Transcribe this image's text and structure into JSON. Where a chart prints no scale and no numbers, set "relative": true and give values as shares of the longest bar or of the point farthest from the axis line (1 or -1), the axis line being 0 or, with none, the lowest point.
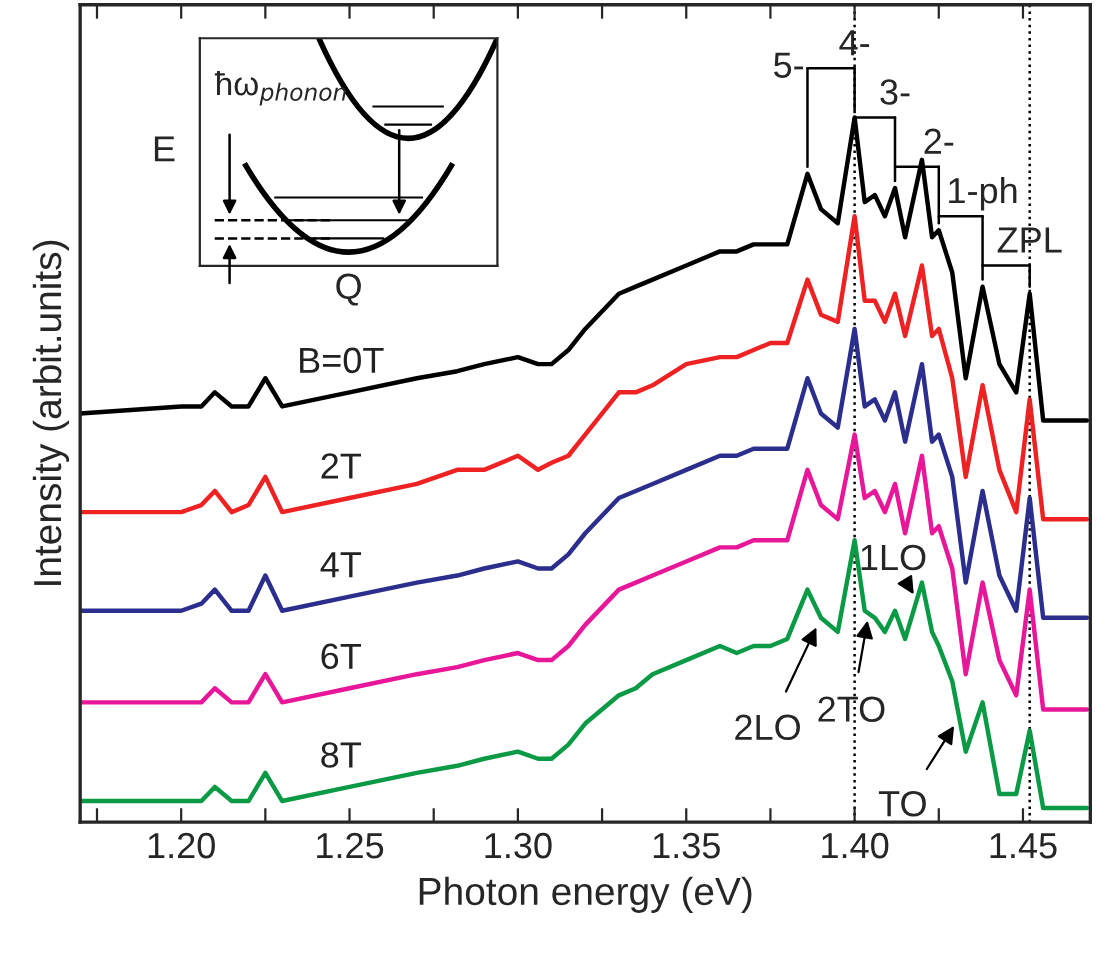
{
  "chart_data": {
    "type": "line",
    "relative": true,
    "xlabel": "Photon energy (eV)",
    "ylabel": "Intensity (arbit.units)",
    "x": [
      1.17,
      1.2,
      1.206,
      1.21,
      1.215,
      1.22,
      1.225,
      1.23,
      1.25,
      1.27,
      1.282,
      1.29,
      1.3,
      1.306,
      1.31,
      1.315,
      1.32,
      1.33,
      1.335,
      1.34,
      1.35,
      1.36,
      1.365,
      1.37,
      1.375,
      1.38,
      1.386,
      1.39,
      1.395,
      1.4,
      1.403,
      1.406,
      1.409,
      1.412,
      1.415,
      1.42,
      1.423,
      1.425,
      1.429,
      1.433,
      1.438,
      1.443,
      1.448,
      1.452,
      1.456,
      1.46,
      1.469
    ],
    "series": [
      {
        "name": "B=0T",
        "color": "#000000",
        "values": [
          0.58,
          0.59,
          0.59,
          0.61,
          0.59,
          0.59,
          0.63,
          0.59,
          0.61,
          0.63,
          0.64,
          0.65,
          0.66,
          0.65,
          0.65,
          0.67,
          0.7,
          0.75,
          0.76,
          0.77,
          0.79,
          0.81,
          0.81,
          0.82,
          0.82,
          0.82,
          0.92,
          0.87,
          0.85,
          1.0,
          0.88,
          0.89,
          0.86,
          0.9,
          0.83,
          0.94,
          0.83,
          0.84,
          0.78,
          0.63,
          0.76,
          0.65,
          0.61,
          0.75,
          0.57,
          0.57,
          0.57
        ]
      },
      {
        "name": "2T",
        "color": "#ee2222",
        "values": [
          0.44,
          0.44,
          0.45,
          0.47,
          0.44,
          0.45,
          0.49,
          0.44,
          0.46,
          0.48,
          0.5,
          0.5,
          0.52,
          0.5,
          0.51,
          0.52,
          0.55,
          0.61,
          0.61,
          0.62,
          0.65,
          0.66,
          0.66,
          0.67,
          0.68,
          0.68,
          0.77,
          0.72,
          0.71,
          0.86,
          0.74,
          0.74,
          0.71,
          0.75,
          0.69,
          0.79,
          0.69,
          0.7,
          0.63,
          0.49,
          0.62,
          0.5,
          0.44,
          0.6,
          0.43,
          0.43,
          0.43
        ]
      },
      {
        "name": "4T",
        "color": "#2b2e8c",
        "values": [
          0.3,
          0.3,
          0.31,
          0.33,
          0.3,
          0.3,
          0.35,
          0.3,
          0.32,
          0.34,
          0.35,
          0.36,
          0.37,
          0.36,
          0.36,
          0.38,
          0.41,
          0.46,
          0.47,
          0.48,
          0.5,
          0.52,
          0.52,
          0.53,
          0.53,
          0.53,
          0.63,
          0.58,
          0.56,
          0.7,
          0.59,
          0.6,
          0.57,
          0.61,
          0.54,
          0.65,
          0.54,
          0.55,
          0.49,
          0.34,
          0.47,
          0.35,
          0.3,
          0.46,
          0.29,
          0.29,
          0.29
        ]
      },
      {
        "name": "6T",
        "color": "#e8179a",
        "values": [
          0.17,
          0.17,
          0.17,
          0.19,
          0.17,
          0.17,
          0.21,
          0.17,
          0.19,
          0.21,
          0.22,
          0.23,
          0.24,
          0.23,
          0.23,
          0.25,
          0.28,
          0.33,
          0.34,
          0.35,
          0.37,
          0.39,
          0.39,
          0.4,
          0.4,
          0.4,
          0.5,
          0.45,
          0.43,
          0.55,
          0.46,
          0.47,
          0.44,
          0.48,
          0.41,
          0.52,
          0.41,
          0.42,
          0.36,
          0.21,
          0.34,
          0.23,
          0.18,
          0.33,
          0.16,
          0.16,
          0.16
        ]
      },
      {
        "name": "8T",
        "color": "#0a9a45",
        "values": [
          0.03,
          0.03,
          0.03,
          0.05,
          0.03,
          0.03,
          0.07,
          0.03,
          0.05,
          0.07,
          0.08,
          0.09,
          0.1,
          0.09,
          0.09,
          0.11,
          0.14,
          0.18,
          0.19,
          0.21,
          0.23,
          0.25,
          0.24,
          0.25,
          0.25,
          0.26,
          0.33,
          0.29,
          0.27,
          0.4,
          0.3,
          0.29,
          0.27,
          0.3,
          0.26,
          0.34,
          0.27,
          0.25,
          0.2,
          0.1,
          0.17,
          0.04,
          0.04,
          0.13,
          0.02,
          0.02,
          0.02
        ]
      }
    ],
    "xlim": [
      1.17,
      1.47
    ],
    "xticks": [
      {
        "value": 1.175,
        "label": null
      },
      {
        "value": 1.2,
        "label": "1.20"
      },
      {
        "value": 1.225,
        "label": null
      },
      {
        "value": 1.25,
        "label": "1.25"
      },
      {
        "value": 1.275,
        "label": null
      },
      {
        "value": 1.3,
        "label": "1.30"
      },
      {
        "value": 1.325,
        "label": null
      },
      {
        "value": 1.35,
        "label": "1.35"
      },
      {
        "value": 1.375,
        "label": null
      },
      {
        "value": 1.4,
        "label": "1.40"
      },
      {
        "value": 1.425,
        "label": null
      },
      {
        "value": 1.45,
        "label": "1.45"
      }
    ],
    "ref_lines": [
      {
        "axis": "x",
        "value": 1.4,
        "line_style": "dotted",
        "color": "#000000"
      },
      {
        "axis": "x",
        "value": 1.452,
        "line_style": "dotted",
        "color": "#000000"
      }
    ],
    "annotations": [
      {
        "text": "5-",
        "x": 1.386,
        "y": 0.92
      },
      {
        "text": "4-",
        "x": 1.4,
        "y": 1.0
      },
      {
        "text": "3-",
        "x": 1.412,
        "y": 0.9
      },
      {
        "text": "2-",
        "x": 1.425,
        "y": 0.84
      },
      {
        "text": "1-ph",
        "x": 1.438,
        "y": 0.76
      },
      {
        "text": "ZPL",
        "x": 1.452,
        "y": 0.75
      },
      {
        "text": "1LO",
        "x": 1.418,
        "y": 0.32
      },
      {
        "text": "2LO",
        "x": 1.389,
        "y": 0.28
      },
      {
        "text": "2TO",
        "x": 1.404,
        "y": 0.29
      },
      {
        "text": "TO",
        "x": 1.43,
        "y": 0.14
      },
      "E",
      "Q",
      "ħω$_{phonon}$"
    ],
    "legend": false,
    "grid": false,
    "line_style": "solid",
    "marker": "none"
  }
}
